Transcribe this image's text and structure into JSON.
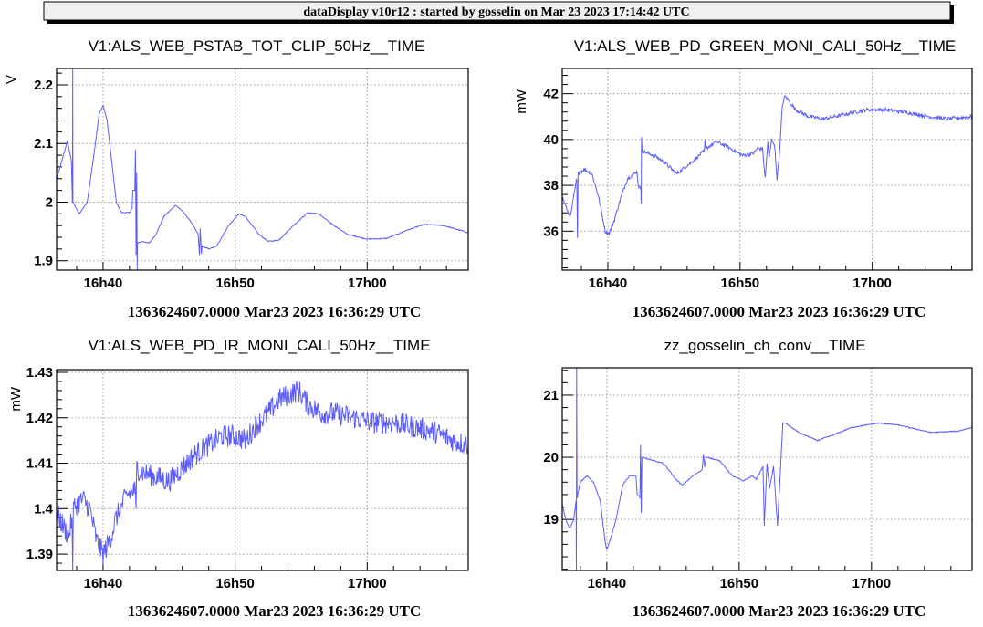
{
  "banner": "dataDisplay v10r12 : started by gosselin on Mar 23 2023 17:14:42 UTC",
  "colors": {
    "trace": "#5b5bff",
    "grid": "#9a9a9a",
    "axis": "#000000"
  },
  "chart_data": [
    {
      "type": "line",
      "title": "V1:ALS_WEB_PSTAB_TOT_CLIP_50Hz__TIME",
      "ylabel": "V",
      "xlabel": "1363624607.0000 Mar23 2023 16:36:29 UTC",
      "x_units": "minutes after 16:00 UTC",
      "xlim": [
        36.48,
        67.65
      ],
      "ylim": [
        1.884,
        2.228
      ],
      "xticks": [
        {
          "value": 40,
          "label": "16h40"
        },
        {
          "value": 50,
          "label": "16h50"
        },
        {
          "value": 60,
          "label": "17h00"
        }
      ],
      "yticks": [
        {
          "value": 1.9,
          "label": "1.9"
        },
        {
          "value": 2.0,
          "label": "2"
        },
        {
          "value": 2.1,
          "label": "2.1"
        },
        {
          "value": 2.2,
          "label": "2.2"
        }
      ],
      "yminor": 0.02,
      "grid": true,
      "noise": 0.0008,
      "points": [
        [
          36.5,
          2.04
        ],
        [
          37.0,
          2.08
        ],
        [
          37.3,
          2.105
        ],
        [
          37.6,
          2.07
        ],
        [
          37.68,
          2.0
        ],
        [
          37.7,
          2.228
        ],
        [
          37.72,
          2.0
        ],
        [
          38.2,
          1.98
        ],
        [
          38.8,
          2.0
        ],
        [
          39.3,
          2.08
        ],
        [
          39.7,
          2.15
        ],
        [
          40.0,
          2.165
        ],
        [
          40.3,
          2.14
        ],
        [
          40.6,
          2.08
        ],
        [
          41.0,
          2.0
        ],
        [
          41.4,
          1.982
        ],
        [
          42.0,
          1.982
        ],
        [
          42.2,
          1.99
        ],
        [
          42.25,
          2.02
        ],
        [
          42.4,
          2.02
        ],
        [
          42.45,
          2.09
        ],
        [
          42.5,
          1.91
        ],
        [
          42.55,
          2.05
        ],
        [
          42.58,
          1.885
        ],
        [
          42.6,
          1.93
        ],
        [
          43.0,
          1.933
        ],
        [
          43.5,
          1.93
        ],
        [
          44.0,
          1.945
        ],
        [
          44.6,
          1.975
        ],
        [
          45.5,
          1.995
        ],
        [
          46.0,
          1.985
        ],
        [
          46.7,
          1.965
        ],
        [
          47.2,
          1.945
        ],
        [
          47.3,
          1.91
        ],
        [
          47.35,
          1.955
        ],
        [
          47.45,
          1.912
        ],
        [
          47.5,
          1.925
        ],
        [
          48.0,
          1.92
        ],
        [
          48.6,
          1.925
        ],
        [
          49.5,
          1.96
        ],
        [
          50.3,
          1.98
        ],
        [
          50.8,
          1.975
        ],
        [
          51.8,
          1.945
        ],
        [
          52.5,
          1.933
        ],
        [
          53.3,
          1.935
        ],
        [
          54.4,
          1.96
        ],
        [
          55.5,
          1.982
        ],
        [
          56.3,
          1.98
        ],
        [
          57.5,
          1.96
        ],
        [
          58.5,
          1.945
        ],
        [
          60.0,
          1.937
        ],
        [
          61.5,
          1.938
        ],
        [
          63.0,
          1.952
        ],
        [
          64.3,
          1.962
        ],
        [
          65.8,
          1.96
        ],
        [
          67.65,
          1.948
        ]
      ]
    },
    {
      "type": "line",
      "title": "V1:ALS_WEB_PD_GREEN_MONI_CALI_50Hz__TIME",
      "ylabel": "mW",
      "xlabel": "1363624607.0000 Mar23 2023 16:36:29 UTC",
      "x_units": "minutes after 16:00 UTC",
      "xlim": [
        36.55,
        67.55
      ],
      "ylim": [
        34.3,
        43.1
      ],
      "xticks": [
        {
          "value": 40,
          "label": "16h40"
        },
        {
          "value": 50,
          "label": "16h50"
        },
        {
          "value": 60,
          "label": "17h00"
        }
      ],
      "yticks": [
        {
          "value": 36,
          "label": "36"
        },
        {
          "value": 38,
          "label": "38"
        },
        {
          "value": 40,
          "label": "40"
        },
        {
          "value": 42,
          "label": "42"
        }
      ],
      "yminor": 0.4,
      "grid": true,
      "noise": 0.08,
      "points": [
        [
          36.55,
          37.5
        ],
        [
          37.0,
          36.8
        ],
        [
          37.2,
          36.7
        ],
        [
          37.5,
          37.8
        ],
        [
          37.65,
          38.3
        ],
        [
          37.7,
          35.7
        ],
        [
          37.75,
          38.5
        ],
        [
          38.2,
          38.7
        ],
        [
          38.8,
          38.5
        ],
        [
          39.3,
          37.5
        ],
        [
          39.8,
          36.0
        ],
        [
          40.1,
          35.9
        ],
        [
          40.5,
          36.5
        ],
        [
          41.0,
          37.5
        ],
        [
          41.5,
          38.3
        ],
        [
          42.2,
          38.6
        ],
        [
          42.3,
          38.0
        ],
        [
          42.5,
          37.8
        ],
        [
          42.52,
          37.2
        ],
        [
          42.55,
          40.1
        ],
        [
          42.6,
          39.5
        ],
        [
          43.5,
          39.3
        ],
        [
          44.3,
          39.0
        ],
        [
          45.2,
          38.5
        ],
        [
          46.3,
          39.0
        ],
        [
          47.3,
          39.5
        ],
        [
          47.35,
          40.0
        ],
        [
          47.4,
          39.6
        ],
        [
          48.2,
          39.9
        ],
        [
          49.0,
          39.7
        ],
        [
          50.2,
          39.3
        ],
        [
          51.0,
          39.4
        ],
        [
          51.3,
          39.6
        ],
        [
          51.7,
          39.6
        ],
        [
          51.9,
          38.3
        ],
        [
          52.1,
          39.9
        ],
        [
          52.2,
          39.2
        ],
        [
          52.4,
          40.0
        ],
        [
          52.6,
          39.8
        ],
        [
          52.8,
          38.3
        ],
        [
          53.0,
          39.5
        ],
        [
          53.2,
          41.5
        ],
        [
          53.4,
          41.9
        ],
        [
          54.2,
          41.3
        ],
        [
          55.2,
          41.0
        ],
        [
          56.3,
          40.9
        ],
        [
          58.0,
          41.1
        ],
        [
          59.5,
          41.3
        ],
        [
          61.0,
          41.3
        ],
        [
          62.5,
          41.2
        ],
        [
          64.3,
          41.0
        ],
        [
          65.7,
          40.9
        ],
        [
          67.55,
          41.0
        ]
      ]
    },
    {
      "type": "line",
      "title": "V1:ALS_WEB_PD_IR_MONI_CALI_50Hz__TIME",
      "ylabel": "mW",
      "xlabel": "1363624607.0000 Mar23 2023 16:36:29 UTC",
      "x_units": "minutes after 16:00 UTC",
      "xlim": [
        36.48,
        67.65
      ],
      "ylim": [
        1.3864,
        1.4306
      ],
      "xticks": [
        {
          "value": 40,
          "label": "16h40"
        },
        {
          "value": 50,
          "label": "16h50"
        },
        {
          "value": 60,
          "label": "17h00"
        }
      ],
      "yticks": [
        {
          "value": 1.39,
          "label": "1.39"
        },
        {
          "value": 1.4,
          "label": "1.4"
        },
        {
          "value": 1.41,
          "label": "1.41"
        },
        {
          "value": 1.42,
          "label": "1.42"
        },
        {
          "value": 1.43,
          "label": "1.43"
        }
      ],
      "yminor": 0.002,
      "grid": true,
      "noise": 0.0025,
      "points": [
        [
          36.5,
          1.399
        ],
        [
          37.0,
          1.396
        ],
        [
          37.4,
          1.394
        ],
        [
          37.65,
          1.398
        ],
        [
          37.7,
          1.3864
        ],
        [
          37.75,
          1.4
        ],
        [
          38.0,
          1.401
        ],
        [
          38.5,
          1.402
        ],
        [
          39.0,
          1.4
        ],
        [
          39.5,
          1.393
        ],
        [
          40.0,
          1.39
        ],
        [
          40.5,
          1.393
        ],
        [
          41.0,
          1.398
        ],
        [
          41.8,
          1.403
        ],
        [
          42.4,
          1.404
        ],
        [
          42.5,
          1.4
        ],
        [
          42.55,
          1.409
        ],
        [
          43.0,
          1.408
        ],
        [
          44.0,
          1.407
        ],
        [
          45.0,
          1.406
        ],
        [
          46.0,
          1.409
        ],
        [
          47.0,
          1.412
        ],
        [
          48.0,
          1.414
        ],
        [
          49.0,
          1.416
        ],
        [
          50.0,
          1.416
        ],
        [
          50.8,
          1.415
        ],
        [
          51.5,
          1.418
        ],
        [
          52.5,
          1.421
        ],
        [
          53.3,
          1.424
        ],
        [
          54.0,
          1.425
        ],
        [
          54.8,
          1.426
        ],
        [
          55.5,
          1.423
        ],
        [
          56.5,
          1.421
        ],
        [
          57.5,
          1.421
        ],
        [
          59.0,
          1.42
        ],
        [
          60.5,
          1.419
        ],
        [
          62.0,
          1.419
        ],
        [
          63.5,
          1.418
        ],
        [
          65.0,
          1.417
        ],
        [
          66.5,
          1.415
        ],
        [
          67.65,
          1.414
        ]
      ]
    },
    {
      "type": "line",
      "title": "zz_gosselin_ch_conv__TIME",
      "ylabel": "",
      "xlabel": "1363624607.0000 Mar23 2023 16:36:29 UTC",
      "x_units": "minutes after 16:00 UTC",
      "xlim": [
        36.63,
        67.6
      ],
      "ylim": [
        18.18,
        21.44
      ],
      "xticks": [
        {
          "value": 40,
          "label": "16h40"
        },
        {
          "value": 50,
          "label": "16h50"
        },
        {
          "value": 60,
          "label": "17h00"
        }
      ],
      "yticks": [
        {
          "value": 19,
          "label": "19"
        },
        {
          "value": 20,
          "label": "20"
        },
        {
          "value": 21,
          "label": "21"
        }
      ],
      "yminor": 0.2,
      "grid": true,
      "noise": 0.008,
      "points": [
        [
          36.63,
          19.25
        ],
        [
          36.9,
          19.0
        ],
        [
          37.2,
          18.85
        ],
        [
          37.5,
          19.0
        ],
        [
          37.68,
          19.3
        ],
        [
          37.7,
          18.18
        ],
        [
          37.72,
          21.44
        ],
        [
          37.75,
          19.35
        ],
        [
          38.0,
          19.6
        ],
        [
          38.5,
          19.7
        ],
        [
          39.0,
          19.6
        ],
        [
          39.5,
          19.3
        ],
        [
          39.9,
          18.6
        ],
        [
          40.0,
          18.52
        ],
        [
          40.3,
          18.7
        ],
        [
          40.7,
          19.0
        ],
        [
          41.2,
          19.55
        ],
        [
          41.7,
          19.7
        ],
        [
          42.2,
          19.7
        ],
        [
          42.3,
          19.4
        ],
        [
          42.5,
          19.35
        ],
        [
          42.55,
          20.2
        ],
        [
          42.6,
          19.1
        ],
        [
          42.65,
          20.0
        ],
        [
          43.5,
          19.95
        ],
        [
          44.3,
          19.9
        ],
        [
          45.2,
          19.65
        ],
        [
          45.7,
          19.55
        ],
        [
          46.5,
          19.7
        ],
        [
          47.2,
          19.8
        ],
        [
          47.3,
          20.05
        ],
        [
          47.4,
          19.85
        ],
        [
          47.5,
          20.0
        ],
        [
          48.5,
          19.95
        ],
        [
          49.5,
          19.7
        ],
        [
          50.3,
          19.62
        ],
        [
          51.0,
          19.7
        ],
        [
          51.3,
          19.65
        ],
        [
          51.8,
          19.85
        ],
        [
          51.9,
          18.9
        ],
        [
          52.1,
          19.9
        ],
        [
          52.3,
          19.5
        ],
        [
          52.6,
          19.85
        ],
        [
          52.9,
          18.9
        ],
        [
          53.1,
          19.7
        ],
        [
          53.3,
          20.55
        ],
        [
          53.5,
          20.55
        ],
        [
          54.5,
          20.4
        ],
        [
          55.9,
          20.27
        ],
        [
          57.0,
          20.35
        ],
        [
          58.5,
          20.48
        ],
        [
          60.5,
          20.55
        ],
        [
          62.0,
          20.52
        ],
        [
          64.5,
          20.4
        ],
        [
          66.5,
          20.42
        ],
        [
          67.6,
          20.48
        ]
      ]
    }
  ]
}
